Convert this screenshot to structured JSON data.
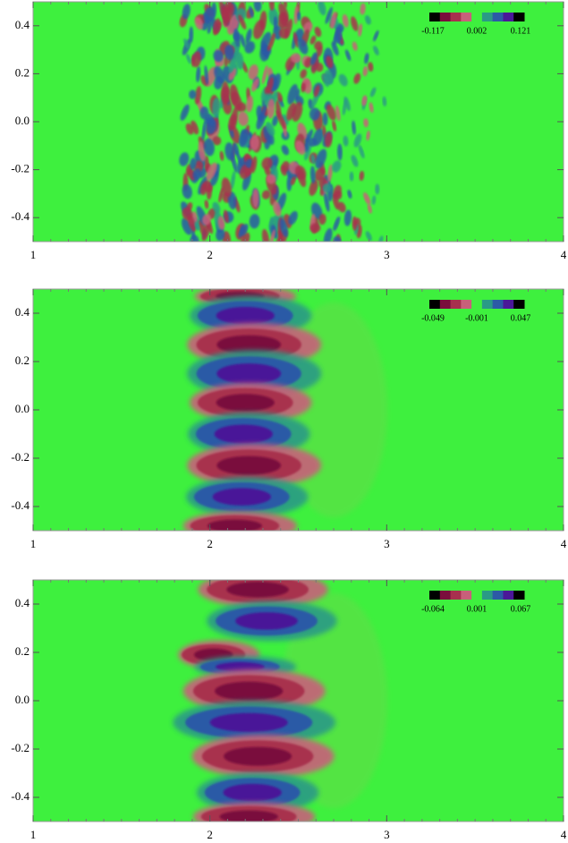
{
  "chart_data": [
    {
      "type": "contour",
      "xlim": [
        1,
        4
      ],
      "ylim": [
        -0.5,
        0.5
      ],
      "xticks": [
        1,
        2,
        3,
        4
      ],
      "yticks": [
        -0.4,
        -0.2,
        {
          "value": 0,
          "label": "0.0"
        },
        0.2,
        0.4
      ],
      "colormap": [
        "#000000",
        "#7a0e3c",
        "#a8304e",
        "#c8607a",
        "#3ef03e",
        "#2a9a86",
        "#2c5aa6",
        "#4a1898",
        "#000000"
      ],
      "colorbar_ticks": [
        -0.117,
        0.002,
        0.121
      ]
    },
    {
      "type": "contour",
      "xlim": [
        1,
        4
      ],
      "ylim": [
        -0.5,
        0.5
      ],
      "xticks": [
        1,
        2,
        3,
        4
      ],
      "yticks": [
        -0.4,
        -0.2,
        {
          "value": 0,
          "label": "0.0"
        },
        0.2,
        0.4
      ],
      "colormap": [
        "#000000",
        "#7a0e3c",
        "#a8304e",
        "#c8607a",
        "#3ef03e",
        "#2a9a86",
        "#2c5aa6",
        "#4a1898",
        "#000000"
      ],
      "colorbar_ticks": [
        -0.049,
        -0.001,
        0.047
      ]
    },
    {
      "type": "contour",
      "xlim": [
        1,
        4
      ],
      "ylim": [
        -0.5,
        0.5
      ],
      "xticks": [
        1,
        2,
        3,
        4
      ],
      "yticks": [
        -0.4,
        -0.2,
        {
          "value": 0,
          "label": "0.0"
        },
        0.2,
        0.4
      ],
      "colormap": [
        "#000000",
        "#7a0e3c",
        "#a8304e",
        "#c8607a",
        "#3ef03e",
        "#2a9a86",
        "#2c5aa6",
        "#4a1898",
        "#000000"
      ],
      "colorbar_ticks": [
        -0.064,
        0.001,
        0.067
      ]
    }
  ]
}
